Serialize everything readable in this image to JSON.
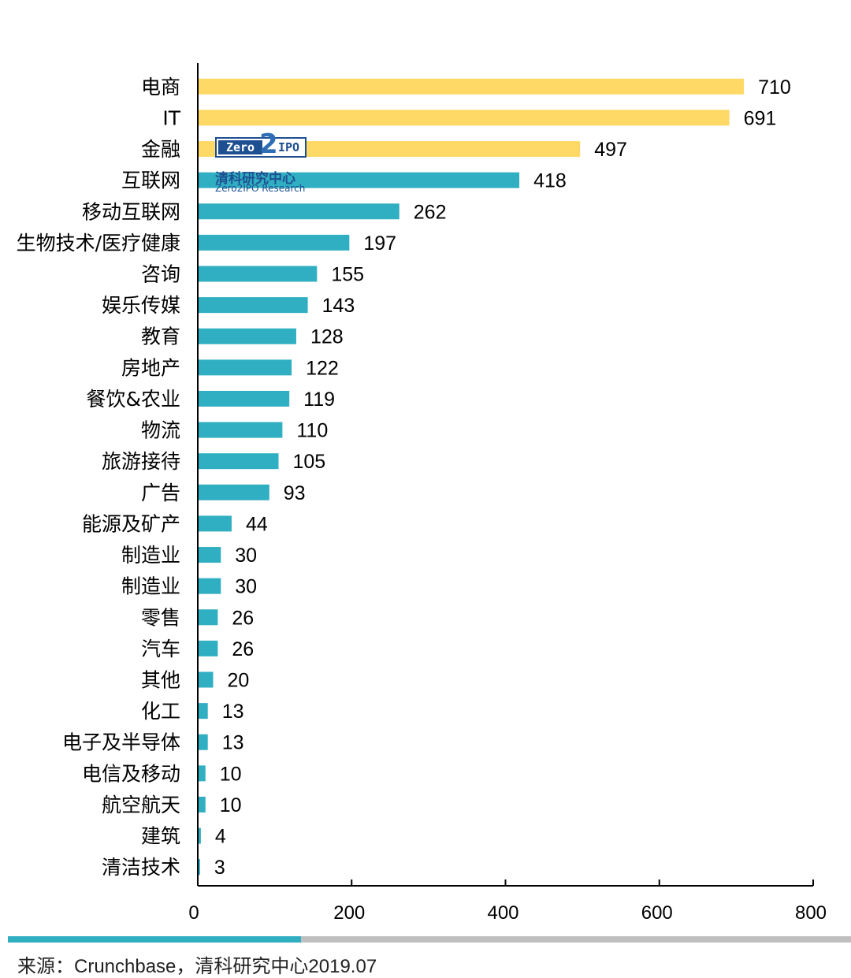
{
  "chart_data": {
    "type": "bar",
    "orientation": "horizontal",
    "categories": [
      "电商",
      "IT",
      "金融",
      "互联网",
      "移动互联网",
      "生物技术/医疗健康",
      "咨询",
      "娱乐传媒",
      "教育",
      "房地产",
      "餐饮&农业",
      "物流",
      "旅游接待",
      "广告",
      "能源及矿产",
      "制造业",
      "制造业",
      "零售",
      "汽车",
      "其他",
      "化工",
      "电子及半导体",
      "电信及移动",
      "航空航天",
      "建筑",
      "清洁技术"
    ],
    "values": [
      710,
      691,
      497,
      418,
      262,
      197,
      155,
      143,
      128,
      122,
      119,
      110,
      105,
      93,
      44,
      30,
      30,
      26,
      26,
      20,
      13,
      13,
      10,
      10,
      4,
      3
    ],
    "bar_colors": [
      "#ffd966",
      "#ffd966",
      "#ffd966",
      "#31afc2",
      "#31afc2",
      "#31afc2",
      "#31afc2",
      "#31afc2",
      "#31afc2",
      "#31afc2",
      "#31afc2",
      "#31afc2",
      "#31afc2",
      "#31afc2",
      "#31afc2",
      "#31afc2",
      "#31afc2",
      "#31afc2",
      "#31afc2",
      "#31afc2",
      "#31afc2",
      "#31afc2",
      "#31afc2",
      "#31afc2",
      "#31afc2",
      "#31afc2"
    ],
    "xlim": [
      0,
      800
    ],
    "xticks": [
      0,
      200,
      400,
      600,
      800
    ],
    "grid": false,
    "data_labels": true
  },
  "colors": {
    "highlight": "#ffd966",
    "primary": "#31afc2",
    "axis": "#000000",
    "footer_teal": "#31afc2",
    "footer_gray": "#bfbfbf"
  },
  "watermark": {
    "brand_left": "Zero",
    "brand_mid": "2",
    "brand_right": "IPO",
    "name_cn": "清科研究中心",
    "name_en": "Zero2IPO Research"
  },
  "source": "来源：Crunchbase，清科研究中心2019.07"
}
